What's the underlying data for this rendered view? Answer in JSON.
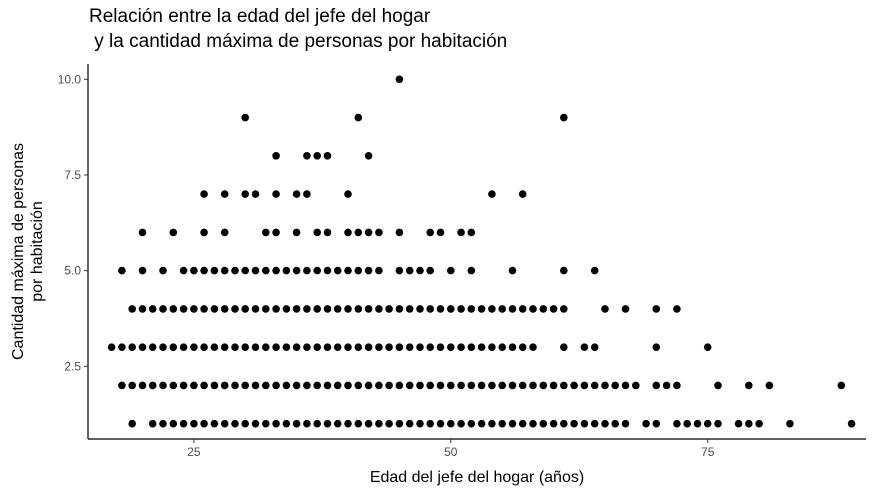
{
  "chart_data": {
    "type": "scatter",
    "title_lines": [
      "Relación entre la edad del jefe del hogar",
      " y la cantidad máxima de personas por habitación"
    ],
    "xlabel": "Edad del jefe del hogar (años)",
    "ylabel_lines": [
      "Cantidad máxima de personas",
      "por habitación"
    ],
    "xlim": [
      14.7,
      90.4
    ],
    "ylim": [
      0.6,
      10.4
    ],
    "xticks": [
      25,
      50,
      75
    ],
    "xtick_labels": [
      "25",
      "50",
      "75"
    ],
    "yticks": [
      2.5,
      5.0,
      7.5,
      10.0
    ],
    "ytick_labels": [
      "2.5",
      "5.0",
      "7.5",
      "10.0"
    ],
    "grid": false,
    "point_color": "#000000",
    "points": [
      {
        "x": 19,
        "y": 1
      },
      {
        "x": 21,
        "y": 1
      },
      {
        "x": 22,
        "y": 1
      },
      {
        "x": 23,
        "y": 1
      },
      {
        "x": 24,
        "y": 1
      },
      {
        "x": 25,
        "y": 1
      },
      {
        "x": 26,
        "y": 1
      },
      {
        "x": 27,
        "y": 1
      },
      {
        "x": 28,
        "y": 1
      },
      {
        "x": 29,
        "y": 1
      },
      {
        "x": 30,
        "y": 1
      },
      {
        "x": 31,
        "y": 1
      },
      {
        "x": 32,
        "y": 1
      },
      {
        "x": 33,
        "y": 1
      },
      {
        "x": 34,
        "y": 1
      },
      {
        "x": 35,
        "y": 1
      },
      {
        "x": 36,
        "y": 1
      },
      {
        "x": 37,
        "y": 1
      },
      {
        "x": 38,
        "y": 1
      },
      {
        "x": 39,
        "y": 1
      },
      {
        "x": 40,
        "y": 1
      },
      {
        "x": 41,
        "y": 1
      },
      {
        "x": 42,
        "y": 1
      },
      {
        "x": 43,
        "y": 1
      },
      {
        "x": 44,
        "y": 1
      },
      {
        "x": 45,
        "y": 1
      },
      {
        "x": 46,
        "y": 1
      },
      {
        "x": 47,
        "y": 1
      },
      {
        "x": 48,
        "y": 1
      },
      {
        "x": 49,
        "y": 1
      },
      {
        "x": 50,
        "y": 1
      },
      {
        "x": 51,
        "y": 1
      },
      {
        "x": 52,
        "y": 1
      },
      {
        "x": 53,
        "y": 1
      },
      {
        "x": 54,
        "y": 1
      },
      {
        "x": 55,
        "y": 1
      },
      {
        "x": 56,
        "y": 1
      },
      {
        "x": 57,
        "y": 1
      },
      {
        "x": 58,
        "y": 1
      },
      {
        "x": 59,
        "y": 1
      },
      {
        "x": 60,
        "y": 1
      },
      {
        "x": 61,
        "y": 1
      },
      {
        "x": 62,
        "y": 1
      },
      {
        "x": 63,
        "y": 1
      },
      {
        "x": 64,
        "y": 1
      },
      {
        "x": 65,
        "y": 1
      },
      {
        "x": 66,
        "y": 1
      },
      {
        "x": 67,
        "y": 1
      },
      {
        "x": 69,
        "y": 1
      },
      {
        "x": 70,
        "y": 1
      },
      {
        "x": 72,
        "y": 1
      },
      {
        "x": 73,
        "y": 1
      },
      {
        "x": 74,
        "y": 1
      },
      {
        "x": 75,
        "y": 1
      },
      {
        "x": 76,
        "y": 1
      },
      {
        "x": 78,
        "y": 1
      },
      {
        "x": 79,
        "y": 1
      },
      {
        "x": 80,
        "y": 1
      },
      {
        "x": 83,
        "y": 1
      },
      {
        "x": 89,
        "y": 1
      },
      {
        "x": 18,
        "y": 2
      },
      {
        "x": 19,
        "y": 2
      },
      {
        "x": 20,
        "y": 2
      },
      {
        "x": 21,
        "y": 2
      },
      {
        "x": 22,
        "y": 2
      },
      {
        "x": 23,
        "y": 2
      },
      {
        "x": 24,
        "y": 2
      },
      {
        "x": 25,
        "y": 2
      },
      {
        "x": 26,
        "y": 2
      },
      {
        "x": 27,
        "y": 2
      },
      {
        "x": 28,
        "y": 2
      },
      {
        "x": 29,
        "y": 2
      },
      {
        "x": 30,
        "y": 2
      },
      {
        "x": 31,
        "y": 2
      },
      {
        "x": 32,
        "y": 2
      },
      {
        "x": 33,
        "y": 2
      },
      {
        "x": 34,
        "y": 2
      },
      {
        "x": 35,
        "y": 2
      },
      {
        "x": 36,
        "y": 2
      },
      {
        "x": 37,
        "y": 2
      },
      {
        "x": 38,
        "y": 2
      },
      {
        "x": 39,
        "y": 2
      },
      {
        "x": 40,
        "y": 2
      },
      {
        "x": 41,
        "y": 2
      },
      {
        "x": 42,
        "y": 2
      },
      {
        "x": 43,
        "y": 2
      },
      {
        "x": 44,
        "y": 2
      },
      {
        "x": 45,
        "y": 2
      },
      {
        "x": 46,
        "y": 2
      },
      {
        "x": 47,
        "y": 2
      },
      {
        "x": 48,
        "y": 2
      },
      {
        "x": 49,
        "y": 2
      },
      {
        "x": 50,
        "y": 2
      },
      {
        "x": 51,
        "y": 2
      },
      {
        "x": 52,
        "y": 2
      },
      {
        "x": 53,
        "y": 2
      },
      {
        "x": 54,
        "y": 2
      },
      {
        "x": 55,
        "y": 2
      },
      {
        "x": 56,
        "y": 2
      },
      {
        "x": 57,
        "y": 2
      },
      {
        "x": 58,
        "y": 2
      },
      {
        "x": 59,
        "y": 2
      },
      {
        "x": 60,
        "y": 2
      },
      {
        "x": 61,
        "y": 2
      },
      {
        "x": 62,
        "y": 2
      },
      {
        "x": 63,
        "y": 2
      },
      {
        "x": 64,
        "y": 2
      },
      {
        "x": 65,
        "y": 2
      },
      {
        "x": 66,
        "y": 2
      },
      {
        "x": 67,
        "y": 2
      },
      {
        "x": 68,
        "y": 2
      },
      {
        "x": 70,
        "y": 2
      },
      {
        "x": 71,
        "y": 2
      },
      {
        "x": 72,
        "y": 2
      },
      {
        "x": 76,
        "y": 2
      },
      {
        "x": 79,
        "y": 2
      },
      {
        "x": 81,
        "y": 2
      },
      {
        "x": 88,
        "y": 2
      },
      {
        "x": 17,
        "y": 3
      },
      {
        "x": 18,
        "y": 3
      },
      {
        "x": 19,
        "y": 3
      },
      {
        "x": 20,
        "y": 3
      },
      {
        "x": 21,
        "y": 3
      },
      {
        "x": 22,
        "y": 3
      },
      {
        "x": 23,
        "y": 3
      },
      {
        "x": 24,
        "y": 3
      },
      {
        "x": 25,
        "y": 3
      },
      {
        "x": 26,
        "y": 3
      },
      {
        "x": 27,
        "y": 3
      },
      {
        "x": 28,
        "y": 3
      },
      {
        "x": 29,
        "y": 3
      },
      {
        "x": 30,
        "y": 3
      },
      {
        "x": 31,
        "y": 3
      },
      {
        "x": 32,
        "y": 3
      },
      {
        "x": 33,
        "y": 3
      },
      {
        "x": 34,
        "y": 3
      },
      {
        "x": 35,
        "y": 3
      },
      {
        "x": 36,
        "y": 3
      },
      {
        "x": 37,
        "y": 3
      },
      {
        "x": 38,
        "y": 3
      },
      {
        "x": 39,
        "y": 3
      },
      {
        "x": 40,
        "y": 3
      },
      {
        "x": 41,
        "y": 3
      },
      {
        "x": 42,
        "y": 3
      },
      {
        "x": 43,
        "y": 3
      },
      {
        "x": 44,
        "y": 3
      },
      {
        "x": 45,
        "y": 3
      },
      {
        "x": 46,
        "y": 3
      },
      {
        "x": 47,
        "y": 3
      },
      {
        "x": 48,
        "y": 3
      },
      {
        "x": 49,
        "y": 3
      },
      {
        "x": 50,
        "y": 3
      },
      {
        "x": 51,
        "y": 3
      },
      {
        "x": 52,
        "y": 3
      },
      {
        "x": 53,
        "y": 3
      },
      {
        "x": 54,
        "y": 3
      },
      {
        "x": 55,
        "y": 3
      },
      {
        "x": 56,
        "y": 3
      },
      {
        "x": 57,
        "y": 3
      },
      {
        "x": 58,
        "y": 3
      },
      {
        "x": 61,
        "y": 3
      },
      {
        "x": 63,
        "y": 3
      },
      {
        "x": 64,
        "y": 3
      },
      {
        "x": 70,
        "y": 3
      },
      {
        "x": 75,
        "y": 3
      },
      {
        "x": 19,
        "y": 4
      },
      {
        "x": 20,
        "y": 4
      },
      {
        "x": 21,
        "y": 4
      },
      {
        "x": 22,
        "y": 4
      },
      {
        "x": 23,
        "y": 4
      },
      {
        "x": 24,
        "y": 4
      },
      {
        "x": 25,
        "y": 4
      },
      {
        "x": 26,
        "y": 4
      },
      {
        "x": 27,
        "y": 4
      },
      {
        "x": 28,
        "y": 4
      },
      {
        "x": 29,
        "y": 4
      },
      {
        "x": 30,
        "y": 4
      },
      {
        "x": 31,
        "y": 4
      },
      {
        "x": 32,
        "y": 4
      },
      {
        "x": 33,
        "y": 4
      },
      {
        "x": 34,
        "y": 4
      },
      {
        "x": 35,
        "y": 4
      },
      {
        "x": 36,
        "y": 4
      },
      {
        "x": 37,
        "y": 4
      },
      {
        "x": 38,
        "y": 4
      },
      {
        "x": 39,
        "y": 4
      },
      {
        "x": 40,
        "y": 4
      },
      {
        "x": 41,
        "y": 4
      },
      {
        "x": 42,
        "y": 4
      },
      {
        "x": 43,
        "y": 4
      },
      {
        "x": 44,
        "y": 4
      },
      {
        "x": 45,
        "y": 4
      },
      {
        "x": 46,
        "y": 4
      },
      {
        "x": 47,
        "y": 4
      },
      {
        "x": 48,
        "y": 4
      },
      {
        "x": 49,
        "y": 4
      },
      {
        "x": 50,
        "y": 4
      },
      {
        "x": 51,
        "y": 4
      },
      {
        "x": 52,
        "y": 4
      },
      {
        "x": 53,
        "y": 4
      },
      {
        "x": 54,
        "y": 4
      },
      {
        "x": 55,
        "y": 4
      },
      {
        "x": 56,
        "y": 4
      },
      {
        "x": 57,
        "y": 4
      },
      {
        "x": 58,
        "y": 4
      },
      {
        "x": 59,
        "y": 4
      },
      {
        "x": 60,
        "y": 4
      },
      {
        "x": 61,
        "y": 4
      },
      {
        "x": 65,
        "y": 4
      },
      {
        "x": 67,
        "y": 4
      },
      {
        "x": 70,
        "y": 4
      },
      {
        "x": 72,
        "y": 4
      },
      {
        "x": 18,
        "y": 5
      },
      {
        "x": 20,
        "y": 5
      },
      {
        "x": 22,
        "y": 5
      },
      {
        "x": 24,
        "y": 5
      },
      {
        "x": 25,
        "y": 5
      },
      {
        "x": 26,
        "y": 5
      },
      {
        "x": 27,
        "y": 5
      },
      {
        "x": 28,
        "y": 5
      },
      {
        "x": 29,
        "y": 5
      },
      {
        "x": 30,
        "y": 5
      },
      {
        "x": 31,
        "y": 5
      },
      {
        "x": 32,
        "y": 5
      },
      {
        "x": 33,
        "y": 5
      },
      {
        "x": 34,
        "y": 5
      },
      {
        "x": 35,
        "y": 5
      },
      {
        "x": 36,
        "y": 5
      },
      {
        "x": 37,
        "y": 5
      },
      {
        "x": 38,
        "y": 5
      },
      {
        "x": 39,
        "y": 5
      },
      {
        "x": 40,
        "y": 5
      },
      {
        "x": 41,
        "y": 5
      },
      {
        "x": 42,
        "y": 5
      },
      {
        "x": 43,
        "y": 5
      },
      {
        "x": 45,
        "y": 5
      },
      {
        "x": 46,
        "y": 5
      },
      {
        "x": 47,
        "y": 5
      },
      {
        "x": 48,
        "y": 5
      },
      {
        "x": 50,
        "y": 5
      },
      {
        "x": 52,
        "y": 5
      },
      {
        "x": 56,
        "y": 5
      },
      {
        "x": 61,
        "y": 5
      },
      {
        "x": 64,
        "y": 5
      },
      {
        "x": 20,
        "y": 6
      },
      {
        "x": 23,
        "y": 6
      },
      {
        "x": 26,
        "y": 6
      },
      {
        "x": 28,
        "y": 6
      },
      {
        "x": 32,
        "y": 6
      },
      {
        "x": 33,
        "y": 6
      },
      {
        "x": 35,
        "y": 6
      },
      {
        "x": 37,
        "y": 6
      },
      {
        "x": 38,
        "y": 6
      },
      {
        "x": 40,
        "y": 6
      },
      {
        "x": 41,
        "y": 6
      },
      {
        "x": 42,
        "y": 6
      },
      {
        "x": 43,
        "y": 6
      },
      {
        "x": 45,
        "y": 6
      },
      {
        "x": 48,
        "y": 6
      },
      {
        "x": 49,
        "y": 6
      },
      {
        "x": 51,
        "y": 6
      },
      {
        "x": 52,
        "y": 6
      },
      {
        "x": 26,
        "y": 7
      },
      {
        "x": 28,
        "y": 7
      },
      {
        "x": 30,
        "y": 7
      },
      {
        "x": 31,
        "y": 7
      },
      {
        "x": 33,
        "y": 7
      },
      {
        "x": 35,
        "y": 7
      },
      {
        "x": 36,
        "y": 7
      },
      {
        "x": 40,
        "y": 7
      },
      {
        "x": 54,
        "y": 7
      },
      {
        "x": 57,
        "y": 7
      },
      {
        "x": 33,
        "y": 8
      },
      {
        "x": 36,
        "y": 8
      },
      {
        "x": 37,
        "y": 8
      },
      {
        "x": 38,
        "y": 8
      },
      {
        "x": 42,
        "y": 8
      },
      {
        "x": 30,
        "y": 9
      },
      {
        "x": 41,
        "y": 9
      },
      {
        "x": 61,
        "y": 9
      },
      {
        "x": 45,
        "y": 10
      }
    ]
  }
}
